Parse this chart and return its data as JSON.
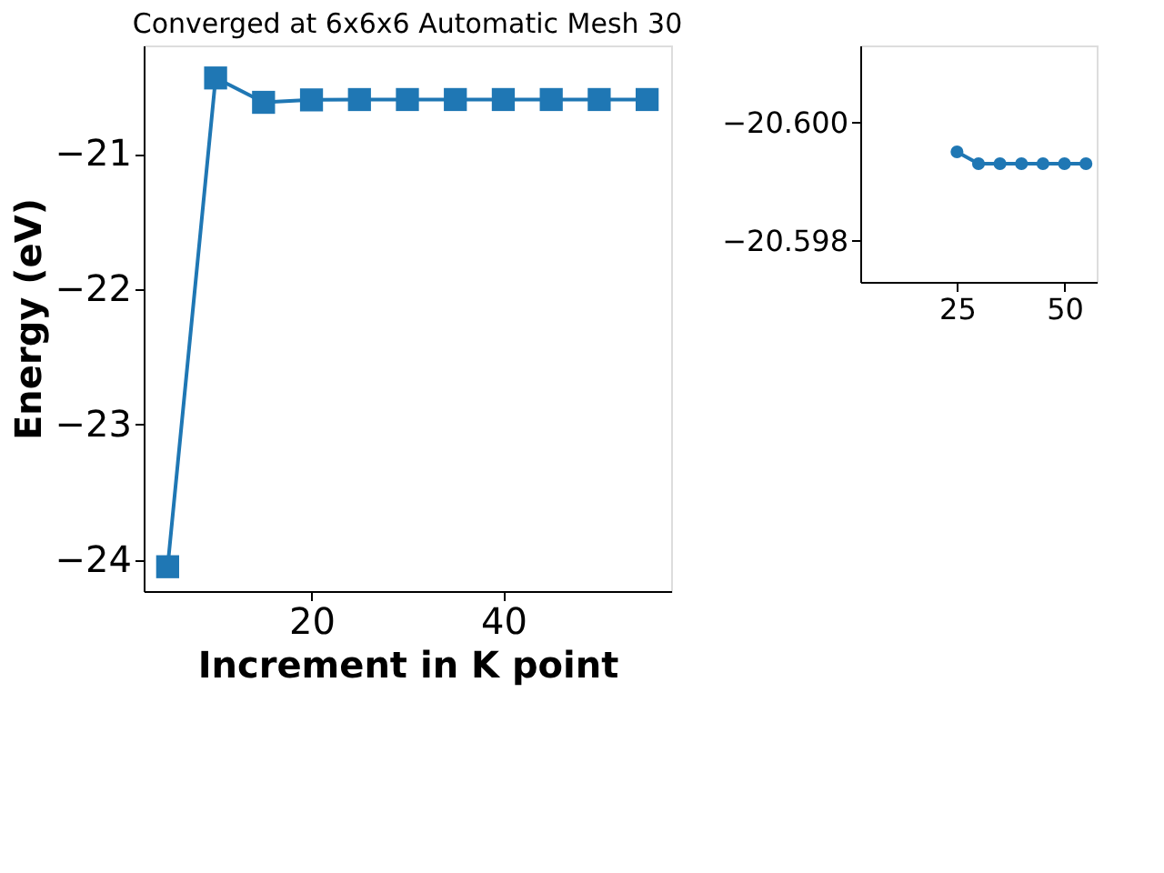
{
  "chart_data": [
    {
      "type": "line",
      "title": "Converged at 6x6x6 Automatic Mesh 30",
      "xlabel": "Increment in K point",
      "ylabel": "Energy (eV)",
      "marker": "square",
      "grid": false,
      "x": [
        5,
        10,
        15,
        20,
        25,
        30,
        35,
        40,
        45,
        50,
        55
      ],
      "series": [
        {
          "color": "#1f77b4",
          "values": [
            -24.05,
            -20.44,
            -20.62,
            -20.602,
            -20.5995,
            -20.5993,
            -20.5993,
            -20.5993,
            -20.5993,
            -20.5993,
            -20.5993
          ]
        }
      ],
      "xlim": [
        2.5,
        57.5
      ],
      "xticks": [
        20,
        40
      ],
      "ylim": [
        -24.23,
        -20.2
      ],
      "yticks": [
        {
          "value": -24,
          "label": "−24"
        },
        {
          "value": -23,
          "label": "−23"
        },
        {
          "value": -22,
          "label": "−22"
        },
        {
          "value": -21,
          "label": "−21"
        }
      ]
    },
    {
      "type": "line",
      "marker": "circle",
      "grid": false,
      "x": [
        25,
        30,
        35,
        40,
        45,
        50,
        55
      ],
      "series": [
        {
          "color": "#1f77b4",
          "values": [
            -20.5995,
            -20.5993,
            -20.5993,
            -20.5993,
            -20.5993,
            -20.5993,
            -20.5993
          ]
        }
      ],
      "xlim": [
        2.5,
        57.5
      ],
      "xticks": [
        25,
        50
      ],
      "ylim": [
        -20.5973,
        -20.6013
      ],
      "yticks": [
        {
          "value": -20.6,
          "label": "−20.600"
        },
        {
          "value": -20.598,
          "label": "−20.598"
        }
      ]
    }
  ]
}
